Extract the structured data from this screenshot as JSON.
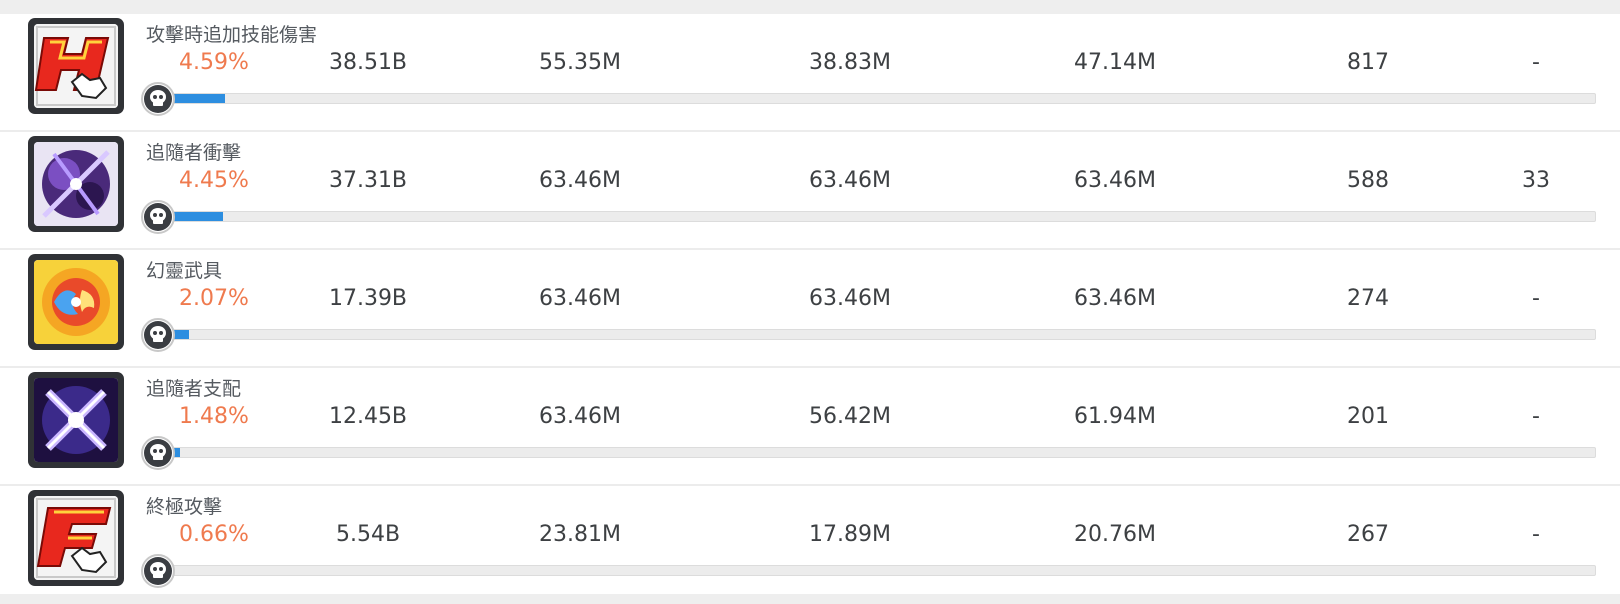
{
  "colors": {
    "percent": "#ef7a4e",
    "bar_fill": "#2d8ee0",
    "bar_track": "#ececec",
    "text": "#3d4043"
  },
  "rows": [
    {
      "name": "攻擊時追加技能傷害",
      "icon": "h-hotkey-skill-icon",
      "percent": "4.59%",
      "bar_fraction": 0.0459,
      "total": "38.51B",
      "c1": "55.35M",
      "c2": "38.83M",
      "c3": "47.14M",
      "count": "817",
      "extra": "-"
    },
    {
      "name": "追隨者衝擊",
      "icon": "purple-burst-skill-icon",
      "percent": "4.45%",
      "bar_fraction": 0.0445,
      "total": "37.31B",
      "c1": "63.46M",
      "c2": "63.46M",
      "c3": "63.46M",
      "count": "588",
      "extra": "33"
    },
    {
      "name": "幻靈武具",
      "icon": "fire-ice-orb-skill-icon",
      "percent": "2.07%",
      "bar_fraction": 0.0207,
      "total": "17.39B",
      "c1": "63.46M",
      "c2": "63.46M",
      "c3": "63.46M",
      "count": "274",
      "extra": "-"
    },
    {
      "name": "追隨者支配",
      "icon": "purple-cross-skill-icon",
      "percent": "1.48%",
      "bar_fraction": 0.0148,
      "total": "12.45B",
      "c1": "63.46M",
      "c2": "56.42M",
      "c3": "61.94M",
      "count": "201",
      "extra": "-"
    },
    {
      "name": "終極攻擊",
      "icon": "f-hotkey-skill-icon",
      "percent": "0.66%",
      "bar_fraction": 0.0066,
      "total": "5.54B",
      "c1": "23.81M",
      "c2": "17.89M",
      "c3": "20.76M",
      "count": "267",
      "extra": "-"
    }
  ]
}
